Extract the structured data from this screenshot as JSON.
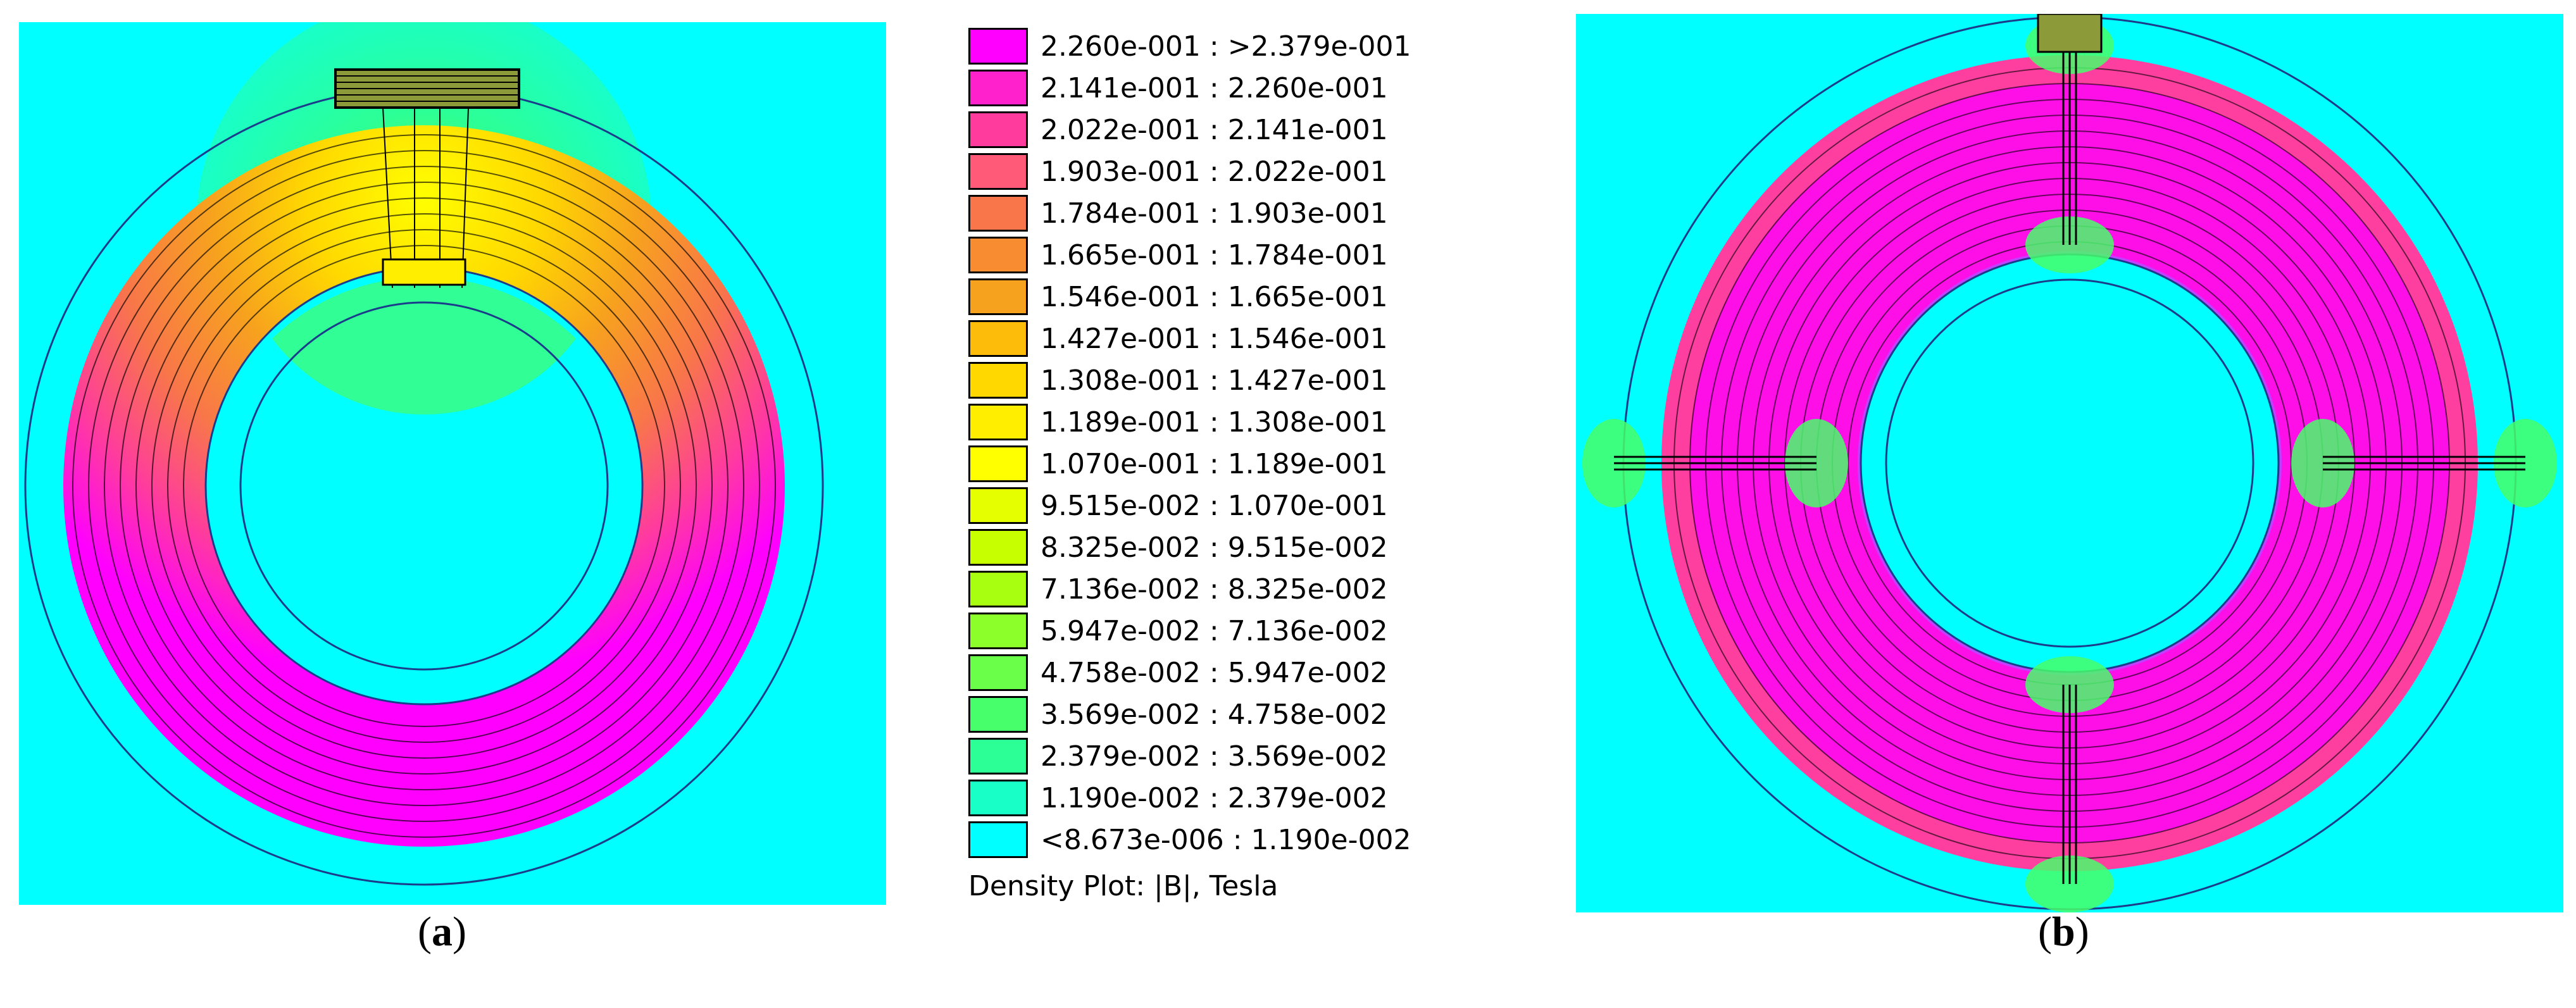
{
  "chart_data": {
    "type": "heatmap",
    "title": "Density Plot: |B|, Tesla",
    "quantity": "|B|",
    "unit": "Tesla",
    "legend": {
      "placement": "center",
      "levels": [
        {
          "label": "2.260e-001 : >2.379e-001",
          "color": "#ff00ff"
        },
        {
          "label": "2.141e-001 : 2.260e-001",
          "color": "#ff22cc"
        },
        {
          "label": "2.022e-001 : 2.141e-001",
          "color": "#ff3b9e"
        },
        {
          "label": "1.903e-001 : 2.022e-001",
          "color": "#ff5a78"
        },
        {
          "label": "1.784e-001 : 1.903e-001",
          "color": "#f8764a"
        },
        {
          "label": "1.665e-001 : 1.784e-001",
          "color": "#f78c30"
        },
        {
          "label": "1.546e-001 : 1.665e-001",
          "color": "#f7a21e"
        },
        {
          "label": "1.427e-001 : 1.546e-001",
          "color": "#fdbb0a"
        },
        {
          "label": "1.308e-001 : 1.427e-001",
          "color": "#ffd800"
        },
        {
          "label": "1.189e-001 : 1.308e-001",
          "color": "#ffee00"
        },
        {
          "label": "1.070e-001 : 1.189e-001",
          "color": "#ffff00"
        },
        {
          "label": "9.515e-002 : 1.070e-001",
          "color": "#e6ff00"
        },
        {
          "label": "8.325e-002 : 9.515e-002",
          "color": "#c8ff00"
        },
        {
          "label": "7.136e-002 : 8.325e-002",
          "color": "#a8ff10"
        },
        {
          "label": "5.947e-002 : 7.136e-002",
          "color": "#8cff2a"
        },
        {
          "label": "4.758e-002 : 5.947e-002",
          "color": "#6aff48"
        },
        {
          "label": "3.569e-002 : 4.758e-002",
          "color": "#46ff6a"
        },
        {
          "label": "2.379e-002 : 3.569e-002",
          "color": "#2cff96"
        },
        {
          "label": "1.190e-002 : 2.379e-002",
          "color": "#18ffc8"
        },
        {
          "label": "<8.673e-006 : 1.190e-002",
          "color": "#00ffff"
        }
      ]
    },
    "panels": [
      {
        "caption": "a"
      },
      {
        "caption": "b"
      }
    ]
  },
  "colors": {
    "background": "#00ffff",
    "ring_max": "#ff00ff",
    "ring_mid": "#f47f4a",
    "ring_high": "#ff3fa0",
    "winding": "#000000",
    "boundary": "#1a3c8a"
  }
}
